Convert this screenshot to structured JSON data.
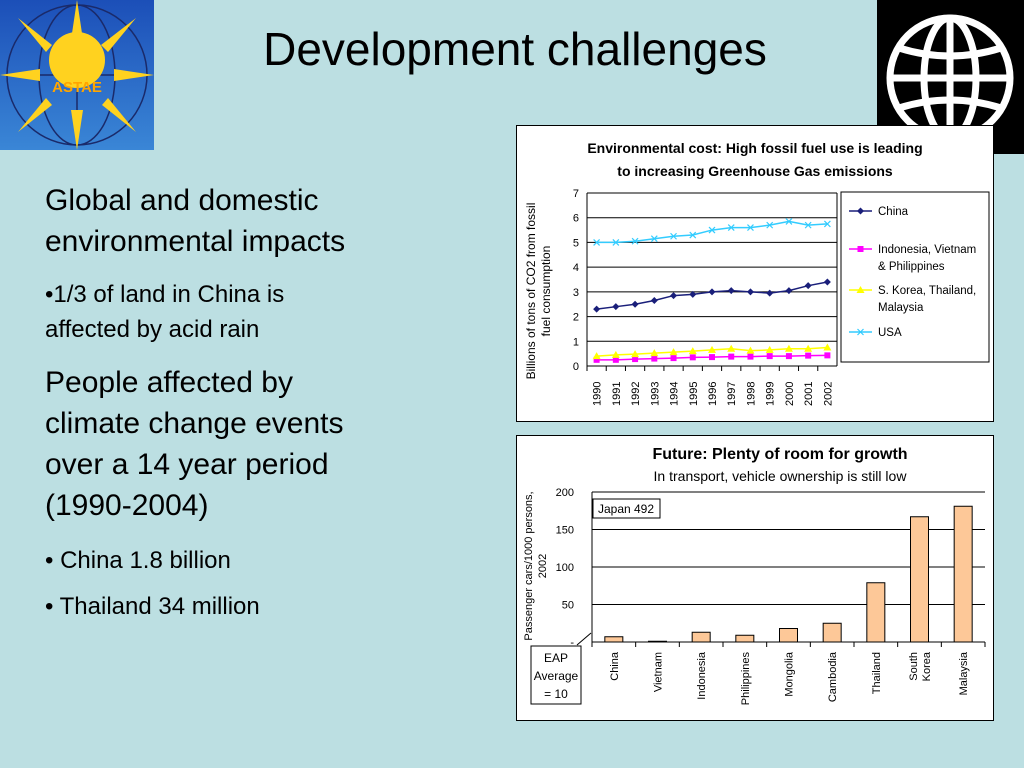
{
  "title": "Development challenges",
  "logo_left": {
    "text": "ASTAE"
  },
  "bullets": [
    {
      "text": "Global and domestic environmental impacts",
      "lines": [
        "Global and domestic",
        "environmental impacts"
      ]
    },
    {
      "text": "•1/3 of land in China is affected by acid rain",
      "lines": [
        "•1/3 of land in China is",
        "affected by acid rain"
      ]
    },
    {
      "text": "People affected by climate change events over a 14 year period (1990-2004)",
      "lines": [
        "People affected by",
        "climate change events",
        "over a 14 year period",
        "(1990-2004)"
      ]
    },
    {
      "text": "• China 1.8 billion"
    },
    {
      "text": "• Thailand 34 million"
    }
  ],
  "chart_data": [
    {
      "type": "line",
      "title": "Environmental cost: High fossil fuel use is leading to increasing Greenhouse Gas emissions",
      "title_lines": [
        "Environmental cost: High fossil fuel use is leading",
        "to increasing Greenhouse Gas emissions"
      ],
      "ylabel": "Billions of tons of CO2 from fossil fuel consumption",
      "ylabel_lines": [
        "Billions of tons of CO2 from fossil",
        "fuel consumption"
      ],
      "ylim": [
        0,
        7
      ],
      "yticks": [
        "0",
        "1",
        "2",
        "3",
        "4",
        "5",
        "6",
        "7"
      ],
      "x": [
        "1990",
        "1991",
        "1992",
        "1993",
        "1994",
        "1995",
        "1996",
        "1997",
        "1998",
        "1999",
        "2000",
        "2001",
        "2002"
      ],
      "legend_position": "right",
      "series": [
        {
          "name": "China",
          "color": "#1a1f7a",
          "marker": "diamond",
          "values": [
            2.3,
            2.4,
            2.5,
            2.65,
            2.85,
            2.9,
            3.0,
            3.05,
            3.0,
            2.95,
            3.05,
            3.25,
            3.4
          ]
        },
        {
          "name": "Indonesia, Vietnam & Philippines",
          "color": "#ff00ff",
          "marker": "square",
          "values": [
            0.25,
            0.25,
            0.28,
            0.3,
            0.32,
            0.35,
            0.36,
            0.38,
            0.38,
            0.4,
            0.4,
            0.42,
            0.43
          ]
        },
        {
          "name": "S. Korea, Thailand, Malaysia",
          "color": "#ffff00",
          "marker": "triangle",
          "values": [
            0.4,
            0.45,
            0.48,
            0.52,
            0.56,
            0.6,
            0.65,
            0.7,
            0.62,
            0.65,
            0.7,
            0.7,
            0.75
          ]
        },
        {
          "name": "USA",
          "color": "#33ccff",
          "marker": "x",
          "values": [
            5.0,
            5.0,
            5.05,
            5.15,
            5.25,
            5.3,
            5.5,
            5.6,
            5.6,
            5.7,
            5.85,
            5.7,
            5.75
          ]
        }
      ],
      "legend_lines": [
        [
          "China"
        ],
        [
          "Indonesia, Vietnam",
          "& Philippines"
        ],
        [
          "S. Korea, Thailand,",
          "Malaysia"
        ],
        [
          "USA"
        ]
      ]
    },
    {
      "type": "bar",
      "title": "Future: Plenty of room for growth",
      "subtitle": "In transport, vehicle ownership is still low",
      "ylabel": "Passenger cars/1000 persons, 2002",
      "ylabel_lines": [
        "Passenger cars/1000 persons,",
        "2002"
      ],
      "ylim": [
        0,
        200
      ],
      "yticks": [
        "-",
        "50",
        "100",
        "150",
        "200"
      ],
      "categories": [
        "China",
        "Vietnam",
        "Indonesia",
        "Philippines",
        "Mongolia",
        "Cambodia",
        "Thailand",
        "South Korea",
        "Malaysia"
      ],
      "category_lines": [
        [
          "China"
        ],
        [
          "Vietnam"
        ],
        [
          "Indonesia"
        ],
        [
          "Philippines"
        ],
        [
          "Mongolia"
        ],
        [
          "Cambodia"
        ],
        [
          "Thailand"
        ],
        [
          "South",
          "Korea"
        ],
        [
          "Malaysia"
        ]
      ],
      "values": [
        7,
        1,
        13,
        9,
        18,
        25,
        79,
        167,
        181
      ],
      "bar_color": "#fdc898",
      "annotations": [
        {
          "text": "Japan 492"
        },
        {
          "text": "EAP Average = 10",
          "lines": [
            "EAP",
            "Average",
            "= 10"
          ]
        }
      ]
    }
  ]
}
